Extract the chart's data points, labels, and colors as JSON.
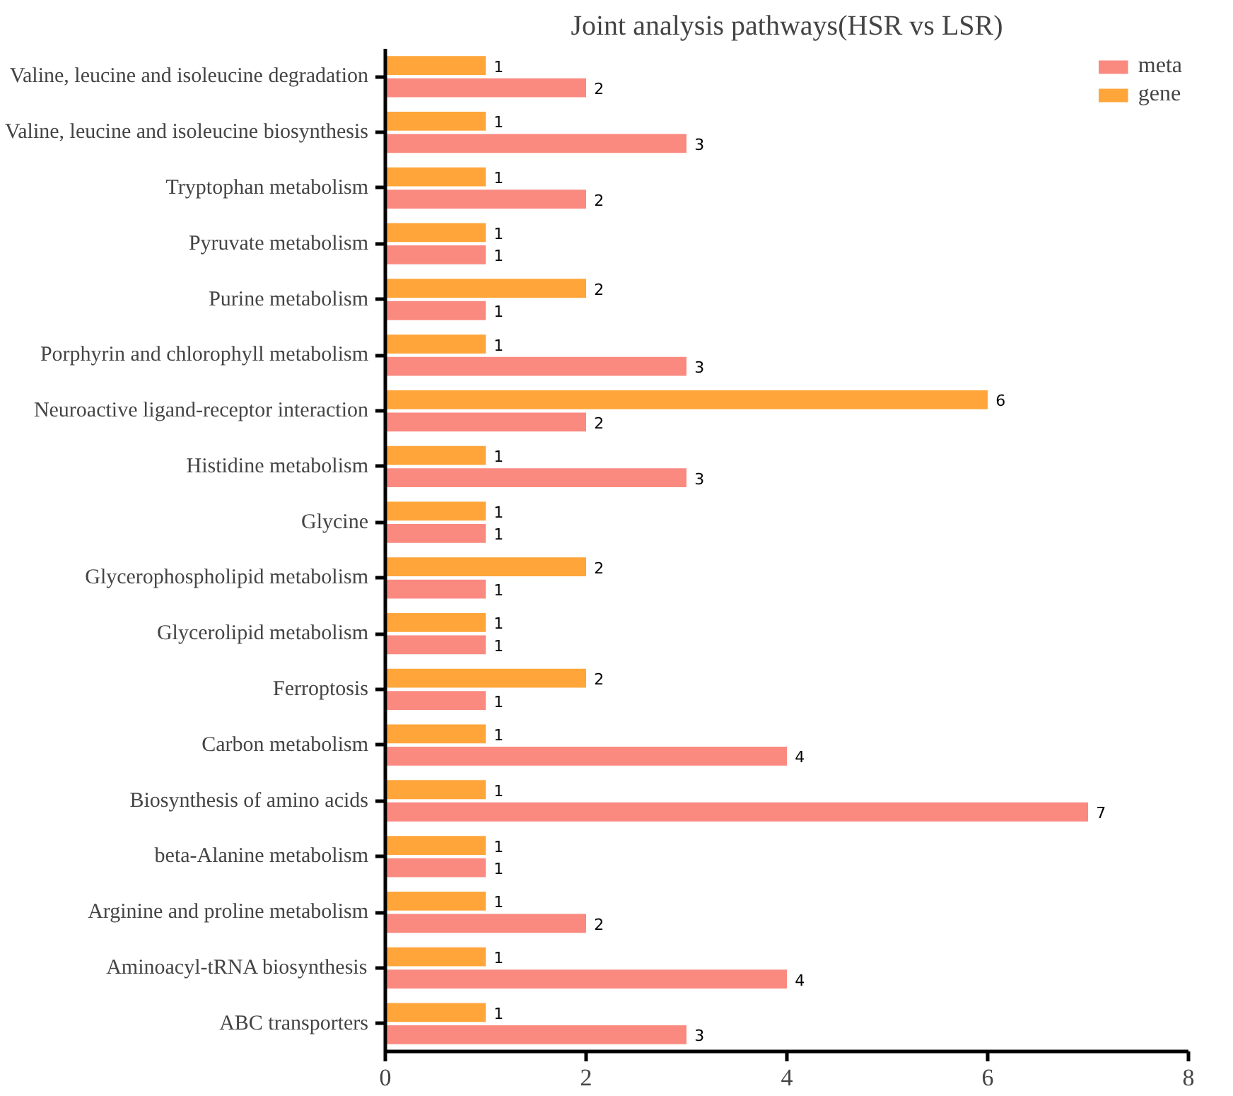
{
  "chart_data": {
    "type": "bar",
    "orientation": "horizontal",
    "title": "Joint analysis pathways(HSR vs LSR)",
    "categories": [
      "Valine, leucine and isoleucine degradation",
      "Valine, leucine and isoleucine biosynthesis",
      "Tryptophan metabolism",
      "Pyruvate metabolism",
      "Purine metabolism",
      "Porphyrin and chlorophyll metabolism",
      "Neuroactive ligand-receptor interaction",
      "Histidine metabolism",
      "Glycine",
      "Glycerophospholipid metabolism",
      "Glycerolipid metabolism",
      "Ferroptosis",
      "Carbon metabolism",
      "Biosynthesis of amino acids",
      "beta-Alanine metabolism",
      "Arginine and proline metabolism",
      "Aminoacyl-tRNA biosynthesis",
      "ABC transporters"
    ],
    "series": [
      {
        "name": "meta",
        "color": "#fa8a80",
        "values": [
          2,
          3,
          2,
          1,
          1,
          3,
          2,
          3,
          1,
          1,
          1,
          1,
          4,
          7,
          1,
          2,
          4,
          3
        ]
      },
      {
        "name": "gene",
        "color": "#ffa53a",
        "values": [
          1,
          1,
          1,
          1,
          2,
          1,
          6,
          1,
          1,
          2,
          1,
          2,
          1,
          1,
          1,
          1,
          1,
          1
        ]
      }
    ],
    "xlim": [
      0,
      8
    ],
    "xticks": [
      0,
      2,
      4,
      6,
      8
    ],
    "grid": false,
    "legend": "top right",
    "data_labels": true
  }
}
